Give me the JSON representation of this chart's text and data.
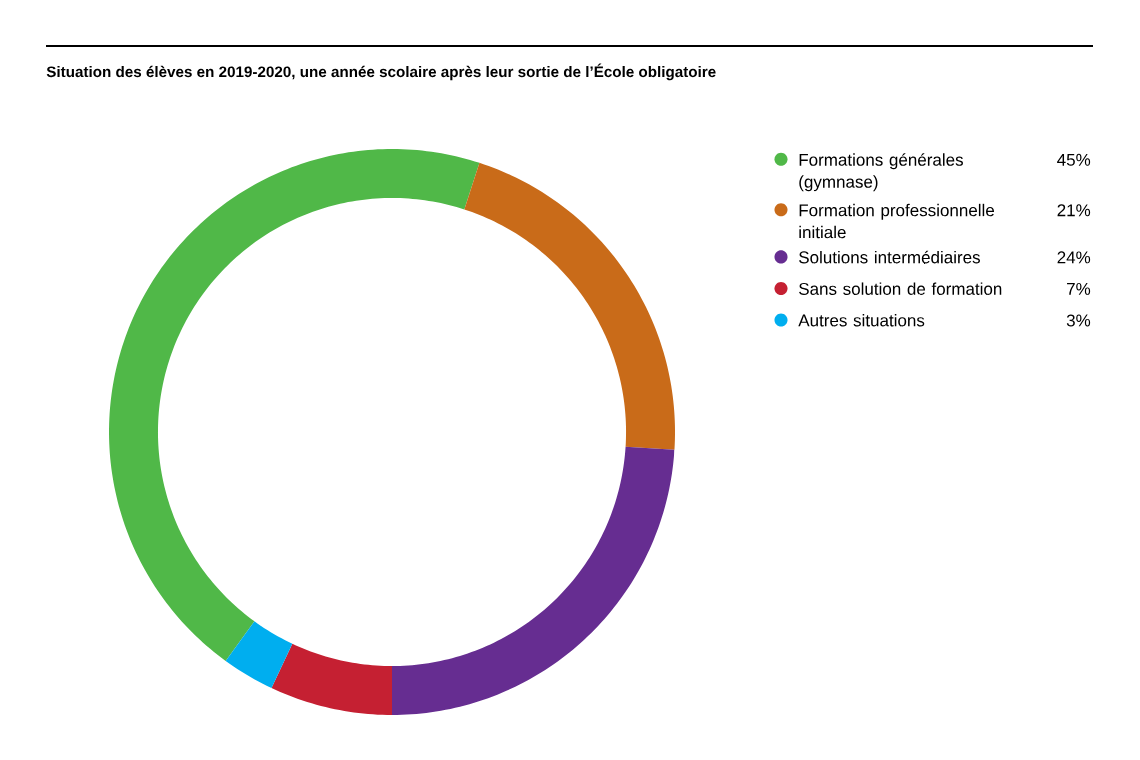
{
  "chart_data": {
    "type": "donut",
    "title": "Situation des élèves en 2019-2020, une année scolaire après leur sortie de l’École obligatoire",
    "categories": [
      "Formations générales (gymnase)",
      "Formation professionnelle initiale",
      "Solutions intermédiaires",
      "Sans solution de formation",
      "Autres situations"
    ],
    "values": [
      45,
      21,
      24,
      7,
      3
    ],
    "colors": [
      "#50b848",
      "#c96b19",
      "#662d91",
      "#c52032",
      "#00aeef"
    ],
    "value_labels": [
      "45%",
      "21%",
      "24%",
      "7%",
      "3%"
    ],
    "legend": "right"
  }
}
